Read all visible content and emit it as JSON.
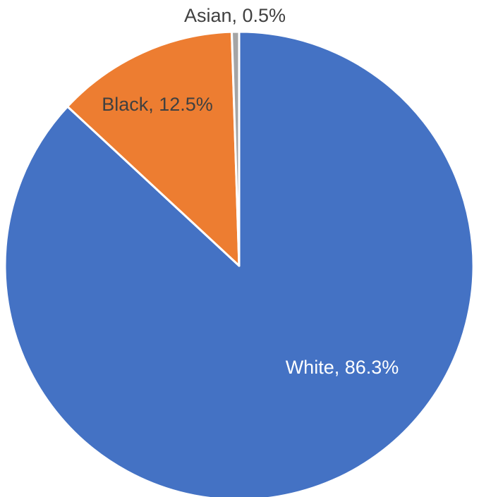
{
  "chart_data": {
    "type": "pie",
    "title": "",
    "slices": [
      {
        "label": "White",
        "value": 86.3,
        "display": "White, 86.3%",
        "color": "#4472C4",
        "label_color": "#FFFFFF"
      },
      {
        "label": "Black",
        "value": 12.5,
        "display": "Black, 12.5%",
        "color": "#ED7D31",
        "label_color": "#404040"
      },
      {
        "label": "Asian",
        "value": 0.5,
        "display": "Asian, 0.5%",
        "color": "#A5A5A5",
        "label_color": "#404040"
      }
    ],
    "start_angle_deg": 0,
    "direction": "clockwise",
    "legend": "none"
  }
}
